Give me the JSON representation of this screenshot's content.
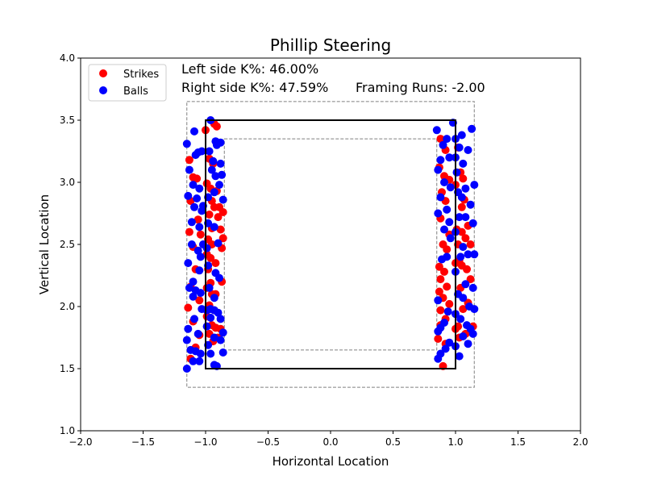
{
  "chart_data": {
    "type": "scatter",
    "title": "Phillip Steering",
    "xlabel": "Horizontal Location",
    "ylabel": "Vertical Location",
    "xlim": [
      -2.0,
      2.0
    ],
    "ylim": [
      1.0,
      4.0
    ],
    "xticks": [
      "−2.0",
      "−1.5",
      "−1.0",
      "−0.5",
      "0.0",
      "0.5",
      "1.0",
      "1.5",
      "2.0"
    ],
    "yticks": [
      "1.0",
      "1.5",
      "2.0",
      "2.5",
      "3.0",
      "3.5",
      "4.0"
    ],
    "grid": false,
    "legend_position": "top-left",
    "annotations": {
      "left_k": "Left side K%: 46.00%",
      "right_k": "Right side K%: 47.59%",
      "framing": "Framing Runs: -2.00"
    },
    "zones": {
      "strike_zone": {
        "x": [
          -1.0,
          1.0
        ],
        "y": [
          1.5,
          3.5
        ],
        "color": "#000000"
      },
      "outer_zone": {
        "x": [
          -1.15,
          1.15
        ],
        "y": [
          1.35,
          3.65
        ],
        "color": "#808080"
      },
      "inner_zone": {
        "x": [
          -0.85,
          0.85
        ],
        "y": [
          1.65,
          3.35
        ],
        "color": "#808080"
      }
    },
    "series": [
      {
        "name": "Strikes",
        "color": "#ff0000",
        "points": [
          [
            -1.13,
            3.18
          ],
          [
            -1.1,
            3.04
          ],
          [
            -1.07,
            3.03
          ],
          [
            -1.12,
            2.85
          ],
          [
            -1.06,
            2.7
          ],
          [
            -1.13,
            2.6
          ],
          [
            -1.04,
            2.58
          ],
          [
            -1.1,
            2.48
          ],
          [
            -1.08,
            2.3
          ],
          [
            -1.12,
            2.16
          ],
          [
            -1.05,
            2.05
          ],
          [
            -1.14,
            1.99
          ],
          [
            -1.1,
            1.88
          ],
          [
            -1.05,
            1.77
          ],
          [
            -1.08,
            1.67
          ],
          [
            -1.12,
            1.58
          ],
          [
            -1.0,
            3.42
          ],
          [
            -0.93,
            3.47
          ],
          [
            -0.91,
            3.45
          ],
          [
            -0.97,
            3.19
          ],
          [
            -0.94,
            3.15
          ],
          [
            -0.99,
            2.99
          ],
          [
            -0.96,
            2.95
          ],
          [
            -0.91,
            2.93
          ],
          [
            -0.95,
            2.85
          ],
          [
            -0.93,
            2.8
          ],
          [
            -0.89,
            2.8
          ],
          [
            -0.97,
            2.74
          ],
          [
            -0.9,
            2.72
          ],
          [
            -0.95,
            2.63
          ],
          [
            -0.88,
            2.62
          ],
          [
            -0.98,
            2.54
          ],
          [
            -0.95,
            2.5
          ],
          [
            -0.87,
            2.47
          ],
          [
            -0.99,
            2.42
          ],
          [
            -0.96,
            2.39
          ],
          [
            -0.92,
            2.35
          ],
          [
            -0.98,
            2.3
          ],
          [
            -0.96,
            2.19
          ],
          [
            -0.87,
            2.2
          ],
          [
            -0.99,
            2.15
          ],
          [
            -0.95,
            2.1
          ],
          [
            -0.92,
            2.1
          ],
          [
            -0.97,
            2.01
          ],
          [
            -0.93,
            1.97
          ],
          [
            -0.99,
            1.92
          ],
          [
            -0.95,
            1.85
          ],
          [
            -0.92,
            1.83
          ],
          [
            -0.88,
            1.82
          ],
          [
            -0.97,
            1.78
          ],
          [
            -0.9,
            1.75
          ],
          [
            -0.94,
            1.72
          ],
          [
            -0.86,
            2.55
          ],
          [
            -0.86,
            2.76
          ],
          [
            0.88,
            3.35
          ],
          [
            0.92,
            3.26
          ],
          [
            0.87,
            3.12
          ],
          [
            0.91,
            3.05
          ],
          [
            0.95,
            3.02
          ],
          [
            0.89,
            2.92
          ],
          [
            0.92,
            2.85
          ],
          [
            0.88,
            2.71
          ],
          [
            0.95,
            2.58
          ],
          [
            0.9,
            2.5
          ],
          [
            0.93,
            2.46
          ],
          [
            0.87,
            2.32
          ],
          [
            0.91,
            2.28
          ],
          [
            0.88,
            2.22
          ],
          [
            0.93,
            2.16
          ],
          [
            0.87,
            2.12
          ],
          [
            0.9,
            2.07
          ],
          [
            0.95,
            2.02
          ],
          [
            0.88,
            1.97
          ],
          [
            0.92,
            1.9
          ],
          [
            0.88,
            1.85
          ],
          [
            0.86,
            1.74
          ],
          [
            0.92,
            1.7
          ],
          [
            0.9,
            1.52
          ],
          [
            1.02,
            3.28
          ],
          [
            1.04,
            3.08
          ],
          [
            1.06,
            3.03
          ],
          [
            1.0,
            2.98
          ],
          [
            1.07,
            2.86
          ],
          [
            1.05,
            2.8
          ],
          [
            1.1,
            2.65
          ],
          [
            1.01,
            2.62
          ],
          [
            1.05,
            2.6
          ],
          [
            1.08,
            2.55
          ],
          [
            1.02,
            2.5
          ],
          [
            1.12,
            2.5
          ],
          [
            1.03,
            2.37
          ],
          [
            1.0,
            2.35
          ],
          [
            1.05,
            2.33
          ],
          [
            1.09,
            2.3
          ],
          [
            1.12,
            2.22
          ],
          [
            1.04,
            2.15
          ],
          [
            1.1,
            2.03
          ],
          [
            1.06,
            1.98
          ],
          [
            1.02,
            1.84
          ],
          [
            1.08,
            1.78
          ],
          [
            1.14,
            1.84
          ],
          [
            1.0,
            1.82
          ],
          [
            1.03,
            1.75
          ]
        ]
      },
      {
        "name": "Balls",
        "color": "#0000ff",
        "points": [
          [
            -1.15,
            3.31
          ],
          [
            -1.09,
            3.41
          ],
          [
            -1.08,
            3.22
          ],
          [
            -1.06,
            3.24
          ],
          [
            -1.03,
            3.25
          ],
          [
            -1.13,
            3.1
          ],
          [
            -1.1,
            2.98
          ],
          [
            -1.05,
            2.95
          ],
          [
            -1.14,
            2.89
          ],
          [
            -1.07,
            2.87
          ],
          [
            -1.02,
            2.81
          ],
          [
            -1.09,
            2.8
          ],
          [
            -1.03,
            2.77
          ],
          [
            -1.11,
            2.68
          ],
          [
            -1.05,
            2.64
          ],
          [
            -1.11,
            2.5
          ],
          [
            -1.02,
            2.5
          ],
          [
            -1.06,
            2.45
          ],
          [
            -1.04,
            2.4
          ],
          [
            -1.14,
            2.35
          ],
          [
            -1.05,
            2.29
          ],
          [
            -1.1,
            2.2
          ],
          [
            -1.13,
            2.15
          ],
          [
            -1.08,
            2.13
          ],
          [
            -1.04,
            2.11
          ],
          [
            -1.1,
            2.08
          ],
          [
            -1.03,
            1.98
          ],
          [
            -1.09,
            1.9
          ],
          [
            -1.14,
            1.82
          ],
          [
            -1.06,
            1.78
          ],
          [
            -1.15,
            1.73
          ],
          [
            -1.12,
            1.65
          ],
          [
            -1.08,
            1.64
          ],
          [
            -1.04,
            1.62
          ],
          [
            -1.1,
            1.56
          ],
          [
            -1.05,
            1.56
          ],
          [
            -1.15,
            1.5
          ],
          [
            -0.96,
            3.5
          ],
          [
            -0.92,
            3.33
          ],
          [
            -0.91,
            3.3
          ],
          [
            -0.97,
            3.25
          ],
          [
            -0.88,
            3.32
          ],
          [
            -0.94,
            3.17
          ],
          [
            -0.88,
            3.15
          ],
          [
            -0.95,
            3.1
          ],
          [
            -0.92,
            3.05
          ],
          [
            -0.87,
            3.06
          ],
          [
            -0.89,
            2.98
          ],
          [
            -0.98,
            2.88
          ],
          [
            -0.93,
            2.92
          ],
          [
            -0.86,
            2.86
          ],
          [
            -0.98,
            2.67
          ],
          [
            -0.93,
            2.64
          ],
          [
            -0.99,
            2.47
          ],
          [
            -0.9,
            2.51
          ],
          [
            -0.98,
            2.33
          ],
          [
            -0.92,
            2.27
          ],
          [
            -0.89,
            2.23
          ],
          [
            -0.97,
            2.15
          ],
          [
            -0.93,
            2.07
          ],
          [
            -0.99,
            1.97
          ],
          [
            -0.96,
            1.98
          ],
          [
            -0.93,
            1.97
          ],
          [
            -0.9,
            1.95
          ],
          [
            -0.96,
            1.91
          ],
          [
            -0.88,
            1.9
          ],
          [
            -0.99,
            1.84
          ],
          [
            -0.93,
            1.75
          ],
          [
            -0.88,
            1.73
          ],
          [
            -0.98,
            1.69
          ],
          [
            -0.86,
            1.79
          ],
          [
            -0.96,
            1.62
          ],
          [
            -0.86,
            1.63
          ],
          [
            -0.93,
            1.53
          ],
          [
            -0.91,
            1.52
          ],
          [
            0.85,
            3.42
          ],
          [
            0.9,
            3.3
          ],
          [
            0.93,
            3.35
          ],
          [
            0.95,
            3.2
          ],
          [
            0.88,
            3.18
          ],
          [
            0.86,
            3.1
          ],
          [
            0.91,
            3.0
          ],
          [
            0.96,
            2.96
          ],
          [
            0.88,
            2.88
          ],
          [
            0.93,
            2.78
          ],
          [
            0.86,
            2.75
          ],
          [
            0.95,
            2.68
          ],
          [
            0.91,
            2.62
          ],
          [
            0.96,
            2.55
          ],
          [
            0.93,
            2.4
          ],
          [
            0.89,
            2.38
          ],
          [
            0.86,
            2.05
          ],
          [
            0.94,
            1.96
          ],
          [
            0.91,
            1.87
          ],
          [
            0.88,
            1.83
          ],
          [
            0.86,
            1.8
          ],
          [
            0.95,
            1.71
          ],
          [
            0.92,
            1.66
          ],
          [
            0.88,
            1.62
          ],
          [
            0.86,
            1.58
          ],
          [
            0.98,
            3.48
          ],
          [
            1.0,
            3.35
          ],
          [
            1.05,
            3.38
          ],
          [
            1.03,
            3.28
          ],
          [
            1.1,
            3.26
          ],
          [
            1.13,
            3.43
          ],
          [
            1.0,
            3.2
          ],
          [
            1.06,
            3.15
          ],
          [
            1.01,
            3.08
          ],
          [
            1.08,
            2.95
          ],
          [
            1.15,
            2.98
          ],
          [
            1.02,
            2.92
          ],
          [
            1.05,
            2.88
          ],
          [
            1.12,
            2.82
          ],
          [
            1.03,
            2.72
          ],
          [
            1.08,
            2.72
          ],
          [
            1.14,
            2.67
          ],
          [
            1.0,
            2.6
          ],
          [
            1.06,
            2.48
          ],
          [
            1.1,
            2.42
          ],
          [
            1.15,
            2.42
          ],
          [
            1.04,
            2.4
          ],
          [
            1.0,
            2.28
          ],
          [
            1.08,
            2.18
          ],
          [
            1.14,
            2.15
          ],
          [
            1.02,
            2.1
          ],
          [
            1.06,
            2.07
          ],
          [
            1.11,
            2.0
          ],
          [
            1.15,
            1.98
          ],
          [
            1.0,
            1.94
          ],
          [
            1.04,
            1.9
          ],
          [
            1.09,
            1.85
          ],
          [
            1.12,
            1.82
          ],
          [
            1.14,
            1.78
          ],
          [
            1.06,
            1.76
          ],
          [
            1.1,
            1.7
          ],
          [
            1.0,
            1.68
          ],
          [
            1.03,
            1.6
          ]
        ]
      }
    ]
  }
}
